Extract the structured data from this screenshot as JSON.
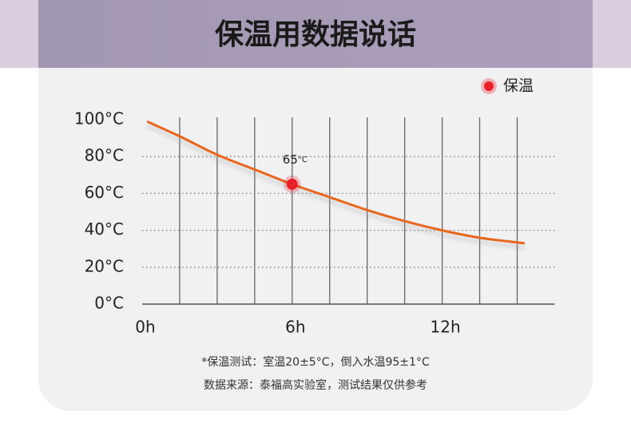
{
  "header": {
    "title": "保温用数据说话"
  },
  "chart_data": {
    "type": "line",
    "legend": "top-right",
    "xlim": [
      0,
      16.5
    ],
    "ylim": [
      0,
      100
    ],
    "xticks": [
      {
        "value": 0,
        "label": "0h"
      },
      {
        "value": 6,
        "label": "6h"
      },
      {
        "value": 12,
        "label": "12h"
      }
    ],
    "x_grid": [
      1.5,
      3,
      4.5,
      6,
      7.5,
      9,
      10.5,
      12,
      13.5,
      15
    ],
    "yticks": [
      {
        "value": 0,
        "label": "0°C"
      },
      {
        "value": 20,
        "label": "20°C"
      },
      {
        "value": 40,
        "label": "40°C"
      },
      {
        "value": 60,
        "label": "60°C"
      },
      {
        "value": 80,
        "label": "80°C"
      },
      {
        "value": 100,
        "label": "100°C"
      }
    ],
    "series": [
      {
        "name": "保温",
        "color": "#e8661c",
        "marker_color": "#e8202a",
        "x": [
          0.2,
          1.5,
          3,
          4.5,
          6,
          7.5,
          9,
          10.5,
          12,
          13.5,
          15.3
        ],
        "values": [
          99,
          91,
          81,
          73,
          65,
          58,
          51,
          45,
          40,
          36,
          33
        ]
      }
    ],
    "highlight": {
      "x": 6,
      "value": 65,
      "unit": "°C",
      "color": "#e8202a"
    }
  },
  "notes": [
    "*保温测试：室温20±5°C，倒入水温95±1°C",
    "数据来源：泰福高实验室，测试结果仅供参考"
  ]
}
